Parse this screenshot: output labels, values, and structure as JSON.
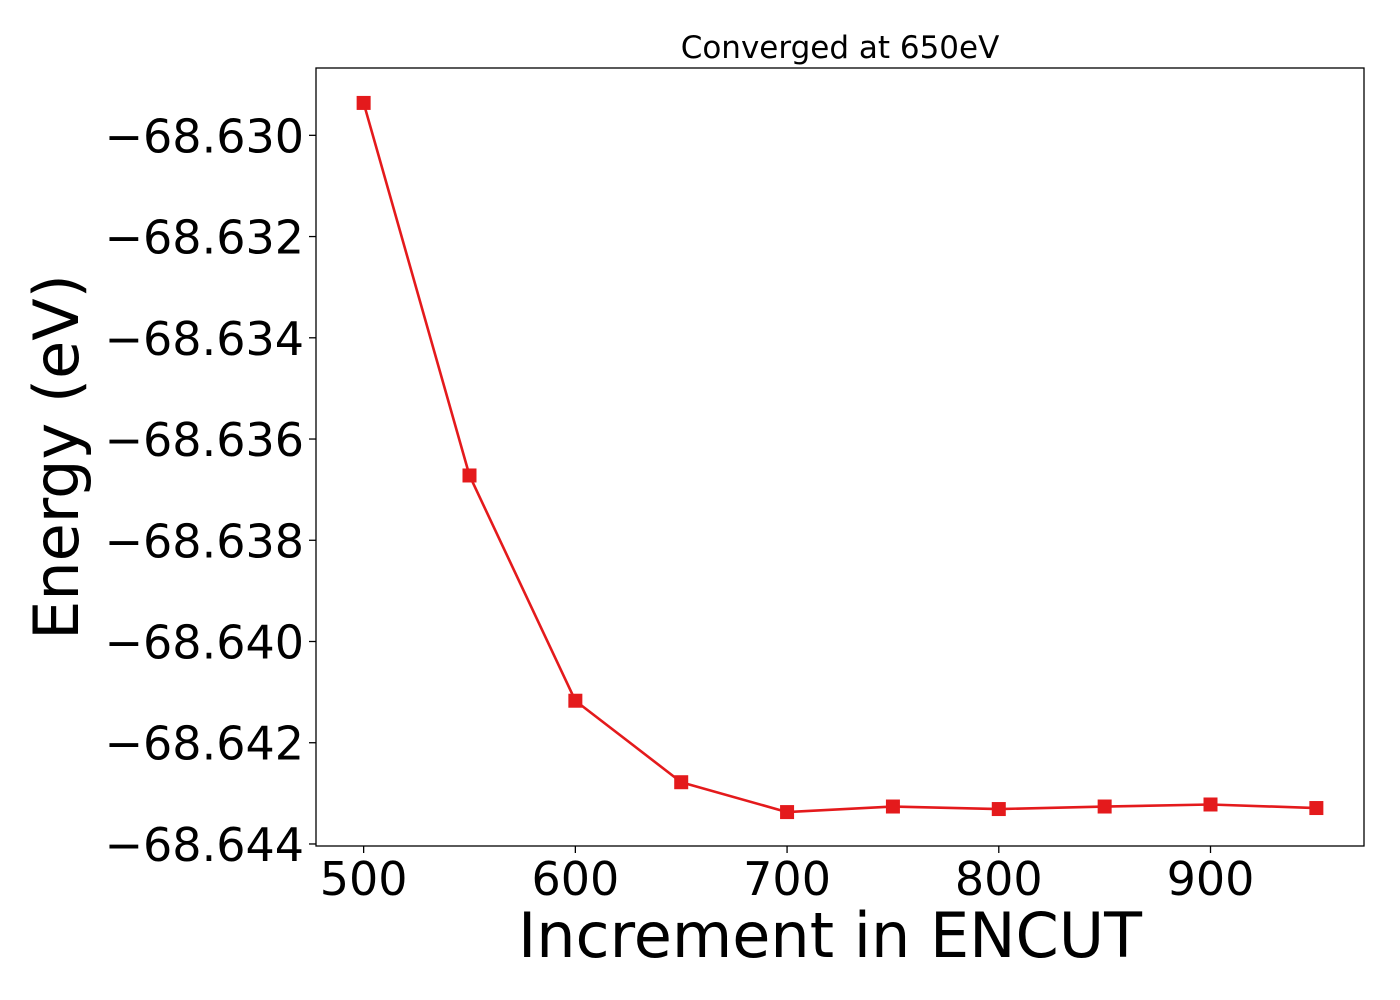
{
  "chart_data": {
    "type": "line",
    "title": "Converged at 650eV",
    "xlabel": "Increment in ENCUT",
    "ylabel": "Energy (eV)",
    "x": [
      500,
      550,
      600,
      650,
      700,
      750,
      800,
      850,
      900,
      950
    ],
    "series": [
      {
        "values": [
          -68.62936,
          -68.63672,
          -68.64117,
          -68.64278,
          -68.64337,
          -68.64326,
          -68.64331,
          -68.64326,
          -68.64322,
          -68.64329
        ],
        "color": "#e41a1c",
        "marker": "square"
      }
    ],
    "xticks": [
      500,
      600,
      700,
      800,
      900
    ],
    "xtick_labels": [
      "500",
      "600",
      "700",
      "800",
      "900"
    ],
    "yticks": [
      -68.63,
      -68.632,
      -68.634,
      -68.636,
      -68.638,
      -68.64,
      -68.642,
      -68.644
    ],
    "ytick_labels": [
      "−68.630",
      "−68.632",
      "−68.634",
      "−68.636",
      "−68.638",
      "−68.640",
      "−68.642",
      "−68.644"
    ],
    "xlim": [
      477.5,
      972.5
    ],
    "ylim": [
      -68.64404,
      -68.62867
    ],
    "grid": false,
    "legend": "none"
  }
}
